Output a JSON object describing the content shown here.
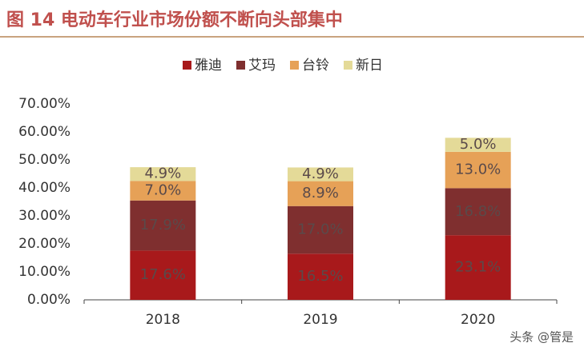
{
  "chart_data": {
    "type": "stacked_bar",
    "title": "图 14 电动车行业市场份额不断向头部集中",
    "categories": [
      "2018",
      "2019",
      "2020"
    ],
    "series": [
      {
        "name": "雅迪",
        "color": "#a8191b",
        "values": [
          17.6,
          16.5,
          23.1
        ],
        "value_labels": [
          "17.6%",
          "16.5%",
          "23.1%"
        ]
      },
      {
        "name": "艾玛",
        "color": "#7f2f2f",
        "values": [
          17.9,
          17.0,
          16.8
        ],
        "value_labels": [
          "17.9%",
          "17.0%",
          "16.8%"
        ]
      },
      {
        "name": "台铃",
        "color": "#e6a157",
        "values": [
          7.0,
          8.9,
          13.0
        ],
        "value_labels": [
          "7.0%",
          "8.9%",
          "13.0%"
        ]
      },
      {
        "name": "新日",
        "color": "#e4da98",
        "values": [
          4.9,
          4.9,
          5.0
        ],
        "value_labels": [
          "4.9%",
          "4.9%",
          "5.0%"
        ]
      }
    ],
    "ylim": [
      0,
      70
    ],
    "yticks": [
      {
        "value": 0,
        "label": "0.00%"
      },
      {
        "value": 10,
        "label": "10.00%"
      },
      {
        "value": 20,
        "label": "20.00%"
      },
      {
        "value": 30,
        "label": "30.00%"
      },
      {
        "value": 40,
        "label": "40.00%"
      },
      {
        "value": 50,
        "label": "50.00%"
      },
      {
        "value": 60,
        "label": "60.00%"
      },
      {
        "value": 70,
        "label": "70.00%"
      }
    ],
    "grid": false,
    "legend": "top"
  },
  "watermark": "头条 @管是"
}
